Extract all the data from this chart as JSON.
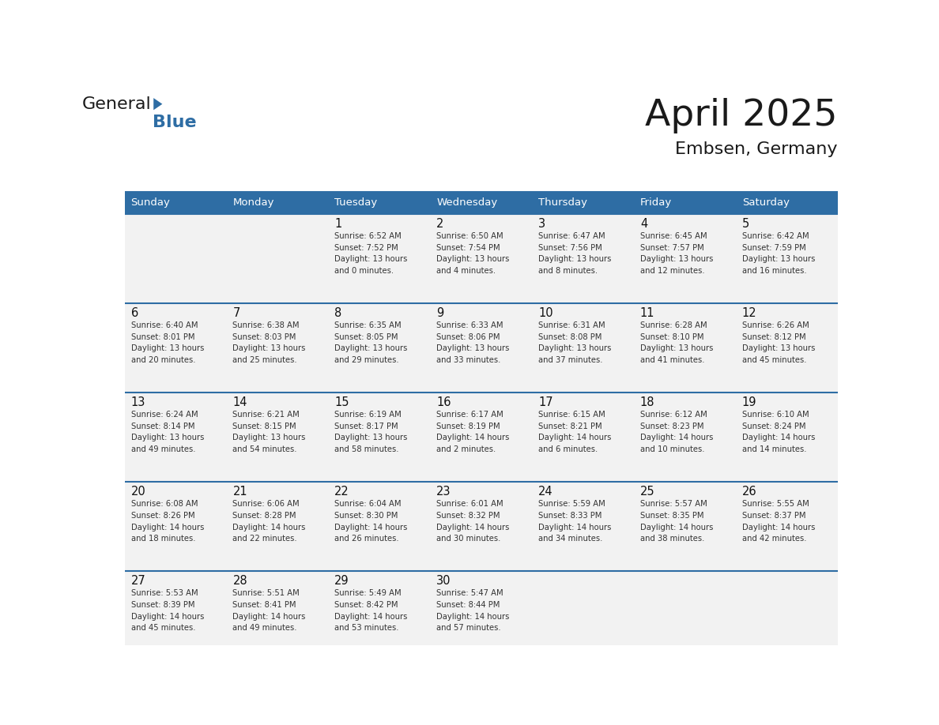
{
  "title": "April 2025",
  "subtitle": "Embsen, Germany",
  "days_of_week": [
    "Sunday",
    "Monday",
    "Tuesday",
    "Wednesday",
    "Thursday",
    "Friday",
    "Saturday"
  ],
  "header_bg": "#2E6DA4",
  "header_text": "#FFFFFF",
  "cell_bg": "#F2F2F2",
  "row_line_color": "#2E6DA4",
  "text_color": "#333333",
  "logo_blue_color": "#2E6DA4",
  "weeks": [
    [
      {
        "day": 0,
        "data": ""
      },
      {
        "day": 0,
        "data": ""
      },
      {
        "day": 1,
        "data": "Sunrise: 6:52 AM\nSunset: 7:52 PM\nDaylight: 13 hours\nand 0 minutes."
      },
      {
        "day": 2,
        "data": "Sunrise: 6:50 AM\nSunset: 7:54 PM\nDaylight: 13 hours\nand 4 minutes."
      },
      {
        "day": 3,
        "data": "Sunrise: 6:47 AM\nSunset: 7:56 PM\nDaylight: 13 hours\nand 8 minutes."
      },
      {
        "day": 4,
        "data": "Sunrise: 6:45 AM\nSunset: 7:57 PM\nDaylight: 13 hours\nand 12 minutes."
      },
      {
        "day": 5,
        "data": "Sunrise: 6:42 AM\nSunset: 7:59 PM\nDaylight: 13 hours\nand 16 minutes."
      }
    ],
    [
      {
        "day": 6,
        "data": "Sunrise: 6:40 AM\nSunset: 8:01 PM\nDaylight: 13 hours\nand 20 minutes."
      },
      {
        "day": 7,
        "data": "Sunrise: 6:38 AM\nSunset: 8:03 PM\nDaylight: 13 hours\nand 25 minutes."
      },
      {
        "day": 8,
        "data": "Sunrise: 6:35 AM\nSunset: 8:05 PM\nDaylight: 13 hours\nand 29 minutes."
      },
      {
        "day": 9,
        "data": "Sunrise: 6:33 AM\nSunset: 8:06 PM\nDaylight: 13 hours\nand 33 minutes."
      },
      {
        "day": 10,
        "data": "Sunrise: 6:31 AM\nSunset: 8:08 PM\nDaylight: 13 hours\nand 37 minutes."
      },
      {
        "day": 11,
        "data": "Sunrise: 6:28 AM\nSunset: 8:10 PM\nDaylight: 13 hours\nand 41 minutes."
      },
      {
        "day": 12,
        "data": "Sunrise: 6:26 AM\nSunset: 8:12 PM\nDaylight: 13 hours\nand 45 minutes."
      }
    ],
    [
      {
        "day": 13,
        "data": "Sunrise: 6:24 AM\nSunset: 8:14 PM\nDaylight: 13 hours\nand 49 minutes."
      },
      {
        "day": 14,
        "data": "Sunrise: 6:21 AM\nSunset: 8:15 PM\nDaylight: 13 hours\nand 54 minutes."
      },
      {
        "day": 15,
        "data": "Sunrise: 6:19 AM\nSunset: 8:17 PM\nDaylight: 13 hours\nand 58 minutes."
      },
      {
        "day": 16,
        "data": "Sunrise: 6:17 AM\nSunset: 8:19 PM\nDaylight: 14 hours\nand 2 minutes."
      },
      {
        "day": 17,
        "data": "Sunrise: 6:15 AM\nSunset: 8:21 PM\nDaylight: 14 hours\nand 6 minutes."
      },
      {
        "day": 18,
        "data": "Sunrise: 6:12 AM\nSunset: 8:23 PM\nDaylight: 14 hours\nand 10 minutes."
      },
      {
        "day": 19,
        "data": "Sunrise: 6:10 AM\nSunset: 8:24 PM\nDaylight: 14 hours\nand 14 minutes."
      }
    ],
    [
      {
        "day": 20,
        "data": "Sunrise: 6:08 AM\nSunset: 8:26 PM\nDaylight: 14 hours\nand 18 minutes."
      },
      {
        "day": 21,
        "data": "Sunrise: 6:06 AM\nSunset: 8:28 PM\nDaylight: 14 hours\nand 22 minutes."
      },
      {
        "day": 22,
        "data": "Sunrise: 6:04 AM\nSunset: 8:30 PM\nDaylight: 14 hours\nand 26 minutes."
      },
      {
        "day": 23,
        "data": "Sunrise: 6:01 AM\nSunset: 8:32 PM\nDaylight: 14 hours\nand 30 minutes."
      },
      {
        "day": 24,
        "data": "Sunrise: 5:59 AM\nSunset: 8:33 PM\nDaylight: 14 hours\nand 34 minutes."
      },
      {
        "day": 25,
        "data": "Sunrise: 5:57 AM\nSunset: 8:35 PM\nDaylight: 14 hours\nand 38 minutes."
      },
      {
        "day": 26,
        "data": "Sunrise: 5:55 AM\nSunset: 8:37 PM\nDaylight: 14 hours\nand 42 minutes."
      }
    ],
    [
      {
        "day": 27,
        "data": "Sunrise: 5:53 AM\nSunset: 8:39 PM\nDaylight: 14 hours\nand 45 minutes."
      },
      {
        "day": 28,
        "data": "Sunrise: 5:51 AM\nSunset: 8:41 PM\nDaylight: 14 hours\nand 49 minutes."
      },
      {
        "day": 29,
        "data": "Sunrise: 5:49 AM\nSunset: 8:42 PM\nDaylight: 14 hours\nand 53 minutes."
      },
      {
        "day": 30,
        "data": "Sunrise: 5:47 AM\nSunset: 8:44 PM\nDaylight: 14 hours\nand 57 minutes."
      },
      {
        "day": 0,
        "data": ""
      },
      {
        "day": 0,
        "data": ""
      },
      {
        "day": 0,
        "data": ""
      }
    ]
  ]
}
